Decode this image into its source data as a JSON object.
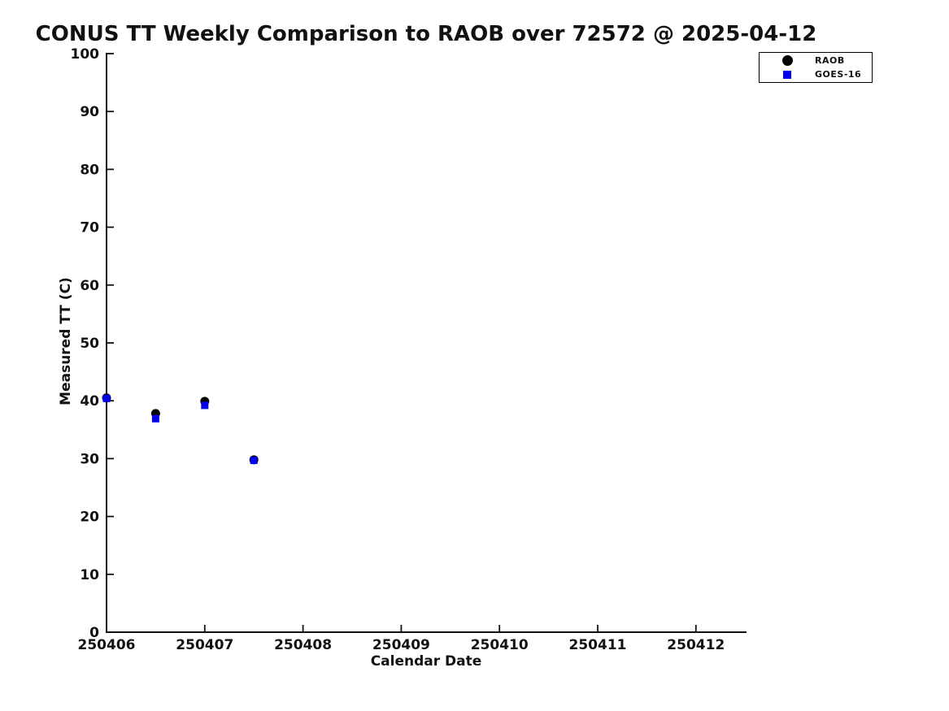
{
  "chart_data": {
    "type": "scatter",
    "title": "CONUS TT Weekly Comparison to RAOB over 72572 @ 2025-04-12",
    "xlabel": "Calendar Date",
    "ylabel": "Measured TT (C)",
    "x_ticks": [
      250406,
      250407,
      250408,
      250409,
      250410,
      250411,
      250412
    ],
    "x_tick_labels": [
      "250406",
      "250407",
      "250408",
      "250409",
      "250410",
      "250411",
      "250412"
    ],
    "y_ticks": [
      0,
      10,
      20,
      30,
      40,
      50,
      60,
      70,
      80,
      90,
      100
    ],
    "ylim": [
      0,
      100
    ],
    "xlim": [
      250406,
      250412.5
    ],
    "grid": false,
    "x": [
      250406.0,
      250406.5,
      250407.0,
      250407.5
    ],
    "series": [
      {
        "name": "RAOB",
        "marker": "circle",
        "color": "#000000",
        "values": [
          40.5,
          37.8,
          39.9,
          29.8
        ]
      },
      {
        "name": "GOES-16",
        "marker": "square",
        "color": "#0000ee",
        "values": [
          40.4,
          36.9,
          39.2,
          29.7
        ]
      }
    ],
    "legend": {
      "position": "top-right",
      "entries": [
        {
          "label": "RAOB",
          "marker": "circle",
          "color": "#000000"
        },
        {
          "label": "GOES-16",
          "marker": "square",
          "color": "#0000ee"
        }
      ]
    },
    "axis_color": "#111111"
  }
}
